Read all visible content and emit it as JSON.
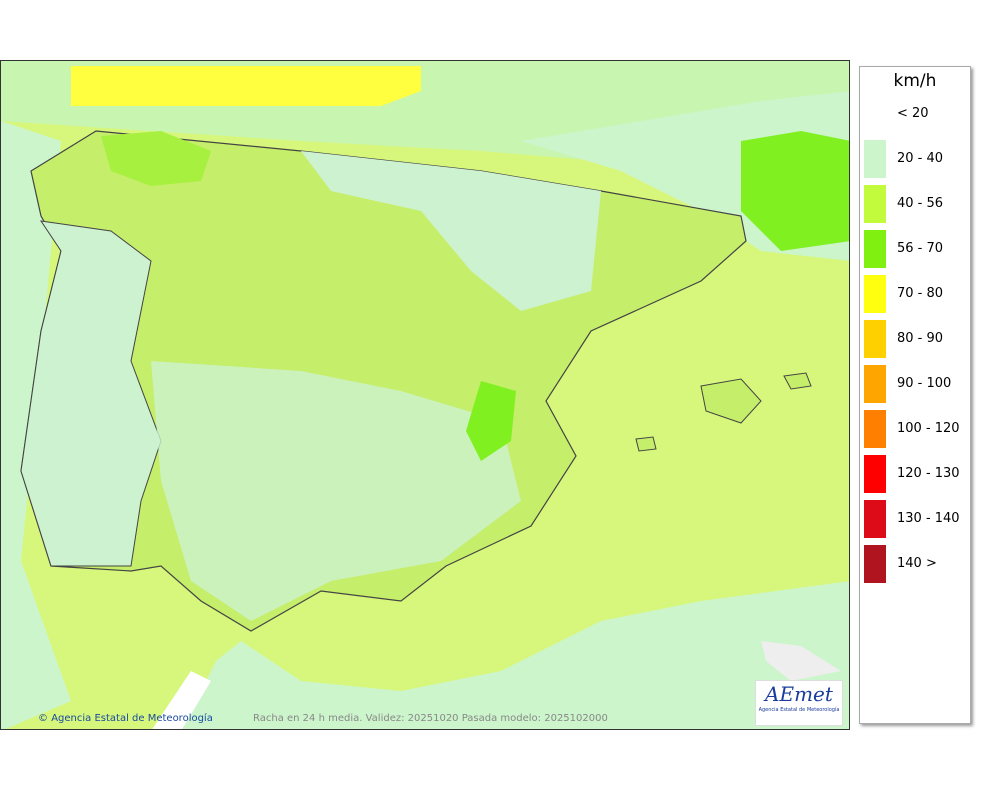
{
  "legend": {
    "unit": "km/h",
    "items": [
      {
        "label": "< 20"
      },
      {
        "label": "20 - 40",
        "color": "#ccf5cc"
      },
      {
        "label": "40 - 56",
        "color": "#c2fa3c"
      },
      {
        "label": "56 - 70",
        "color": "#80f010"
      },
      {
        "label": "70 - 80",
        "color": "#ffff10"
      },
      {
        "label": "80 - 90",
        "color": "#ffd000"
      },
      {
        "label": "90 - 100",
        "color": "#ffa500"
      },
      {
        "label": "100 - 120",
        "color": "#ff8000"
      },
      {
        "label": "120 - 130",
        "color": "#ff0000"
      },
      {
        "label": "130 - 140",
        "color": "#dd0a18"
      },
      {
        "label": "140 >",
        "color": "#b0141e"
      }
    ]
  },
  "footer": {
    "credit": "Agencia Estatal de Meteorología",
    "caption": "Racha en 24 h media. Validez: 20251020 Pasada modelo: 2025102000"
  },
  "logo": {
    "name": "AEmet",
    "subtitle": "Agencia Estatal de Meteorología"
  }
}
